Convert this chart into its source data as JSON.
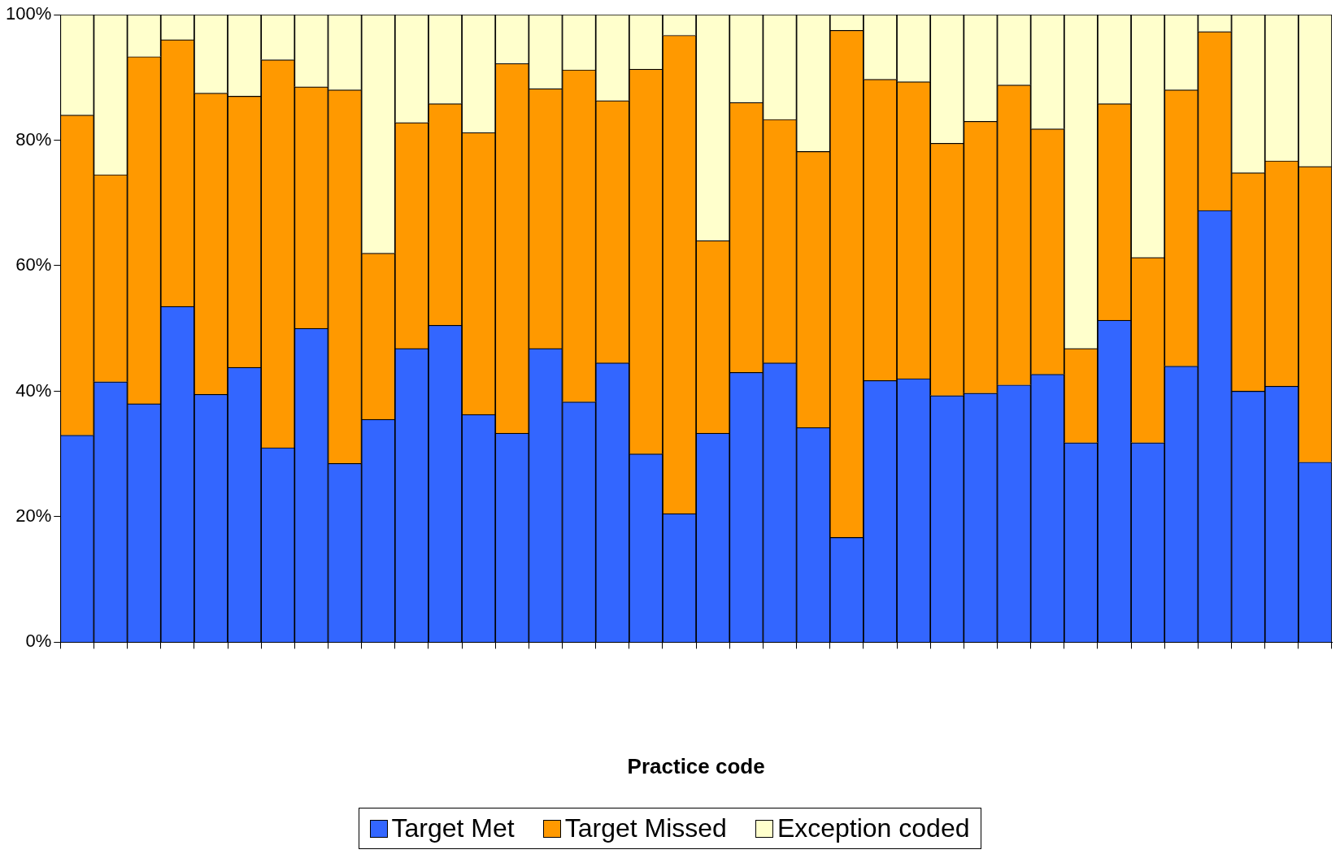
{
  "chart_data": {
    "type": "bar",
    "stacked": true,
    "xlabel": "Practice code",
    "categories": [
      null,
      null,
      null,
      null,
      null,
      null,
      null,
      null,
      null,
      null,
      null,
      null,
      null,
      null,
      null,
      null,
      null,
      null,
      null,
      null,
      null,
      null,
      null,
      null,
      null,
      null,
      null,
      null,
      null,
      null,
      null,
      null,
      null,
      null,
      null,
      null,
      null,
      null
    ],
    "series": [
      {
        "name": "Target Met",
        "color": "#3366ff",
        "values": [
          33,
          41.5,
          38,
          53.5,
          39.5,
          43.8,
          31,
          50,
          28.5,
          35.5,
          46.8,
          50.5,
          36.3,
          33.3,
          46.8,
          38.3,
          44.5,
          30,
          20.5,
          33.3,
          43,
          44.5,
          34.2,
          16.7,
          41.7,
          42,
          39.3,
          39.7,
          41,
          42.7,
          31.8,
          51.3,
          31.8,
          44,
          68.8,
          40,
          40.8,
          28.7
        ]
      },
      {
        "name": "Target Missed",
        "color": "#ff9900",
        "values": [
          51,
          33,
          55.3,
          42.5,
          48,
          43.2,
          61.8,
          38.5,
          59.5,
          26.5,
          36,
          35.3,
          44.9,
          58.9,
          41.4,
          52.9,
          41.8,
          61.3,
          76.2,
          30.7,
          43,
          38.8,
          44,
          80.8,
          48,
          47.3,
          40.2,
          43.3,
          47.8,
          39.1,
          15,
          34.5,
          29.5,
          44,
          28.5,
          34.8,
          35.9,
          47.1
        ]
      },
      {
        "name": "Exception coded",
        "color": "#ffffcc",
        "values": [
          16,
          25.5,
          6.7,
          4,
          12.5,
          13,
          7.2,
          11.5,
          12,
          38,
          17.2,
          14.2,
          18.8,
          7.8,
          11.8,
          8.8,
          13.7,
          8.7,
          3.3,
          36,
          14,
          16.7,
          21.8,
          2.5,
          10.3,
          10.7,
          20.5,
          17,
          11.2,
          18.2,
          53.2,
          14.2,
          38.7,
          12,
          2.7,
          25.2,
          23.3,
          24.2
        ]
      }
    ],
    "ylim": [
      0,
      100
    ],
    "yticks": [
      {
        "value": 0,
        "label": "0%"
      },
      {
        "value": 20,
        "label": "20%"
      },
      {
        "value": 40,
        "label": "40%"
      },
      {
        "value": 60,
        "label": "60%"
      },
      {
        "value": 80,
        "label": "80%"
      },
      {
        "value": 100,
        "label": "100%"
      }
    ],
    "grid": false,
    "legend": "bottom"
  }
}
